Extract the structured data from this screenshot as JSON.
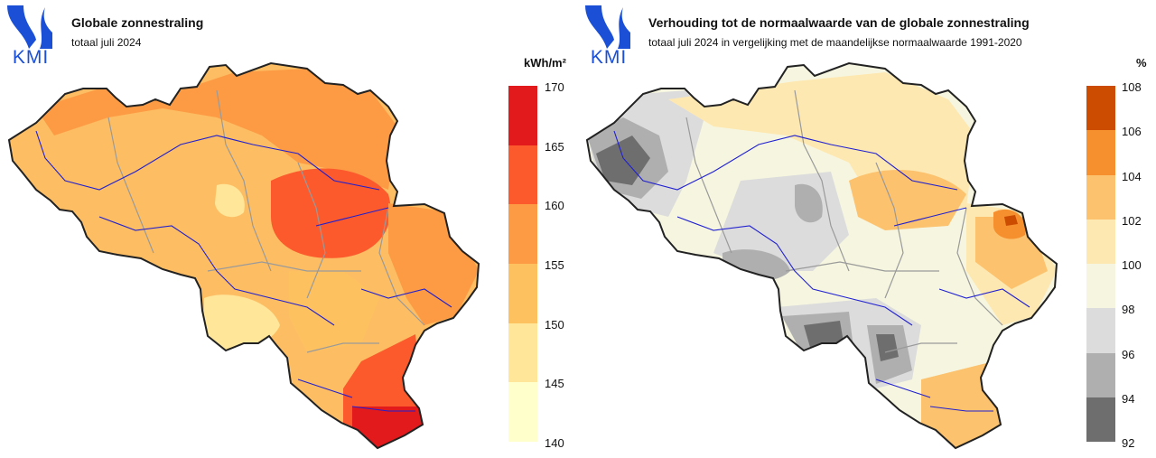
{
  "left_map": {
    "logo_text": "KMI",
    "title": "Globale zonnestraling",
    "subtitle": "totaal juli 2024",
    "unit": "kWh/m²",
    "legend": {
      "ticks": [
        "170",
        "165",
        "160",
        "155",
        "150",
        "145",
        "140"
      ],
      "colors": [
        "#e31a1c",
        "#fc5a2d",
        "#fd9b45",
        "#fec160",
        "#ffe699",
        "#ffffcc"
      ]
    },
    "colors": {
      "base": "#fdbe63",
      "mid": "#fd9b45",
      "high": "#fc5a2d",
      "max": "#e31a1c",
      "low": "#ffe699"
    }
  },
  "right_map": {
    "logo_text": "KMI",
    "title": "Verhouding tot de normaalwaarde van de globale zonnestraling",
    "subtitle": "totaal juli 2024 in vergelijking met de maandelijkse normaalwaarde 1991-2020",
    "unit": "%",
    "legend": {
      "ticks": [
        "108",
        "106",
        "104",
        "102",
        "100",
        "98",
        "96",
        "94",
        "92"
      ],
      "colors": [
        "#cc4c02",
        "#f6902f",
        "#fcc26d",
        "#fee8b2",
        "#f6f6e0",
        "#dcdcdc",
        "#afafaf",
        "#6e6e6e"
      ]
    },
    "colors": {
      "base": "#f6f6e0",
      "grey_light": "#dcdcdc",
      "grey_mid": "#afafaf",
      "grey_dark": "#6e6e6e",
      "orange_light": "#fee8b2",
      "orange_mid": "#fcc26d",
      "orange_high": "#f6902f",
      "orange_max": "#cc4c02"
    }
  }
}
